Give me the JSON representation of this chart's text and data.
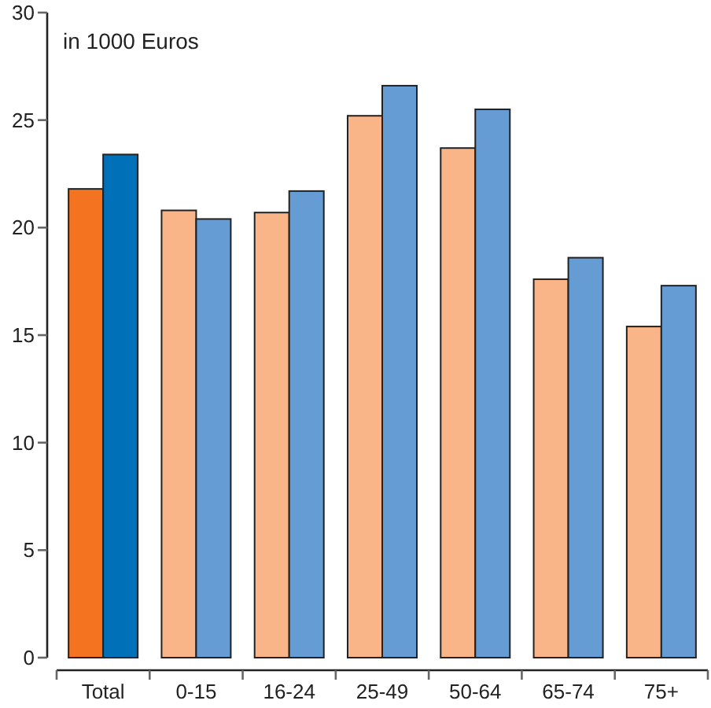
{
  "chart_data": {
    "type": "bar",
    "ylabel": "in 1000 Euros",
    "categories": [
      "Total",
      "0-15",
      "16-24",
      "25-49",
      "50-64",
      "65-74",
      "75+"
    ],
    "series": [
      {
        "colors": [
          "#f47321",
          "#f9b587",
          "#f9b587",
          "#f9b587",
          "#f9b587",
          "#f9b587",
          "#f9b587"
        ],
        "values": [
          21.8,
          20.8,
          20.7,
          25.2,
          23.7,
          17.6,
          15.4
        ]
      },
      {
        "colors": [
          "#0070b9",
          "#659cd3",
          "#659cd3",
          "#659cd3",
          "#659cd3",
          "#659cd3",
          "#659cd3"
        ],
        "values": [
          23.4,
          20.4,
          21.7,
          26.6,
          25.5,
          18.6,
          17.3
        ]
      }
    ],
    "ylim": [
      0,
      30
    ],
    "yticks": [
      0,
      5,
      10,
      15,
      20,
      25,
      30
    ],
    "grid": false
  }
}
